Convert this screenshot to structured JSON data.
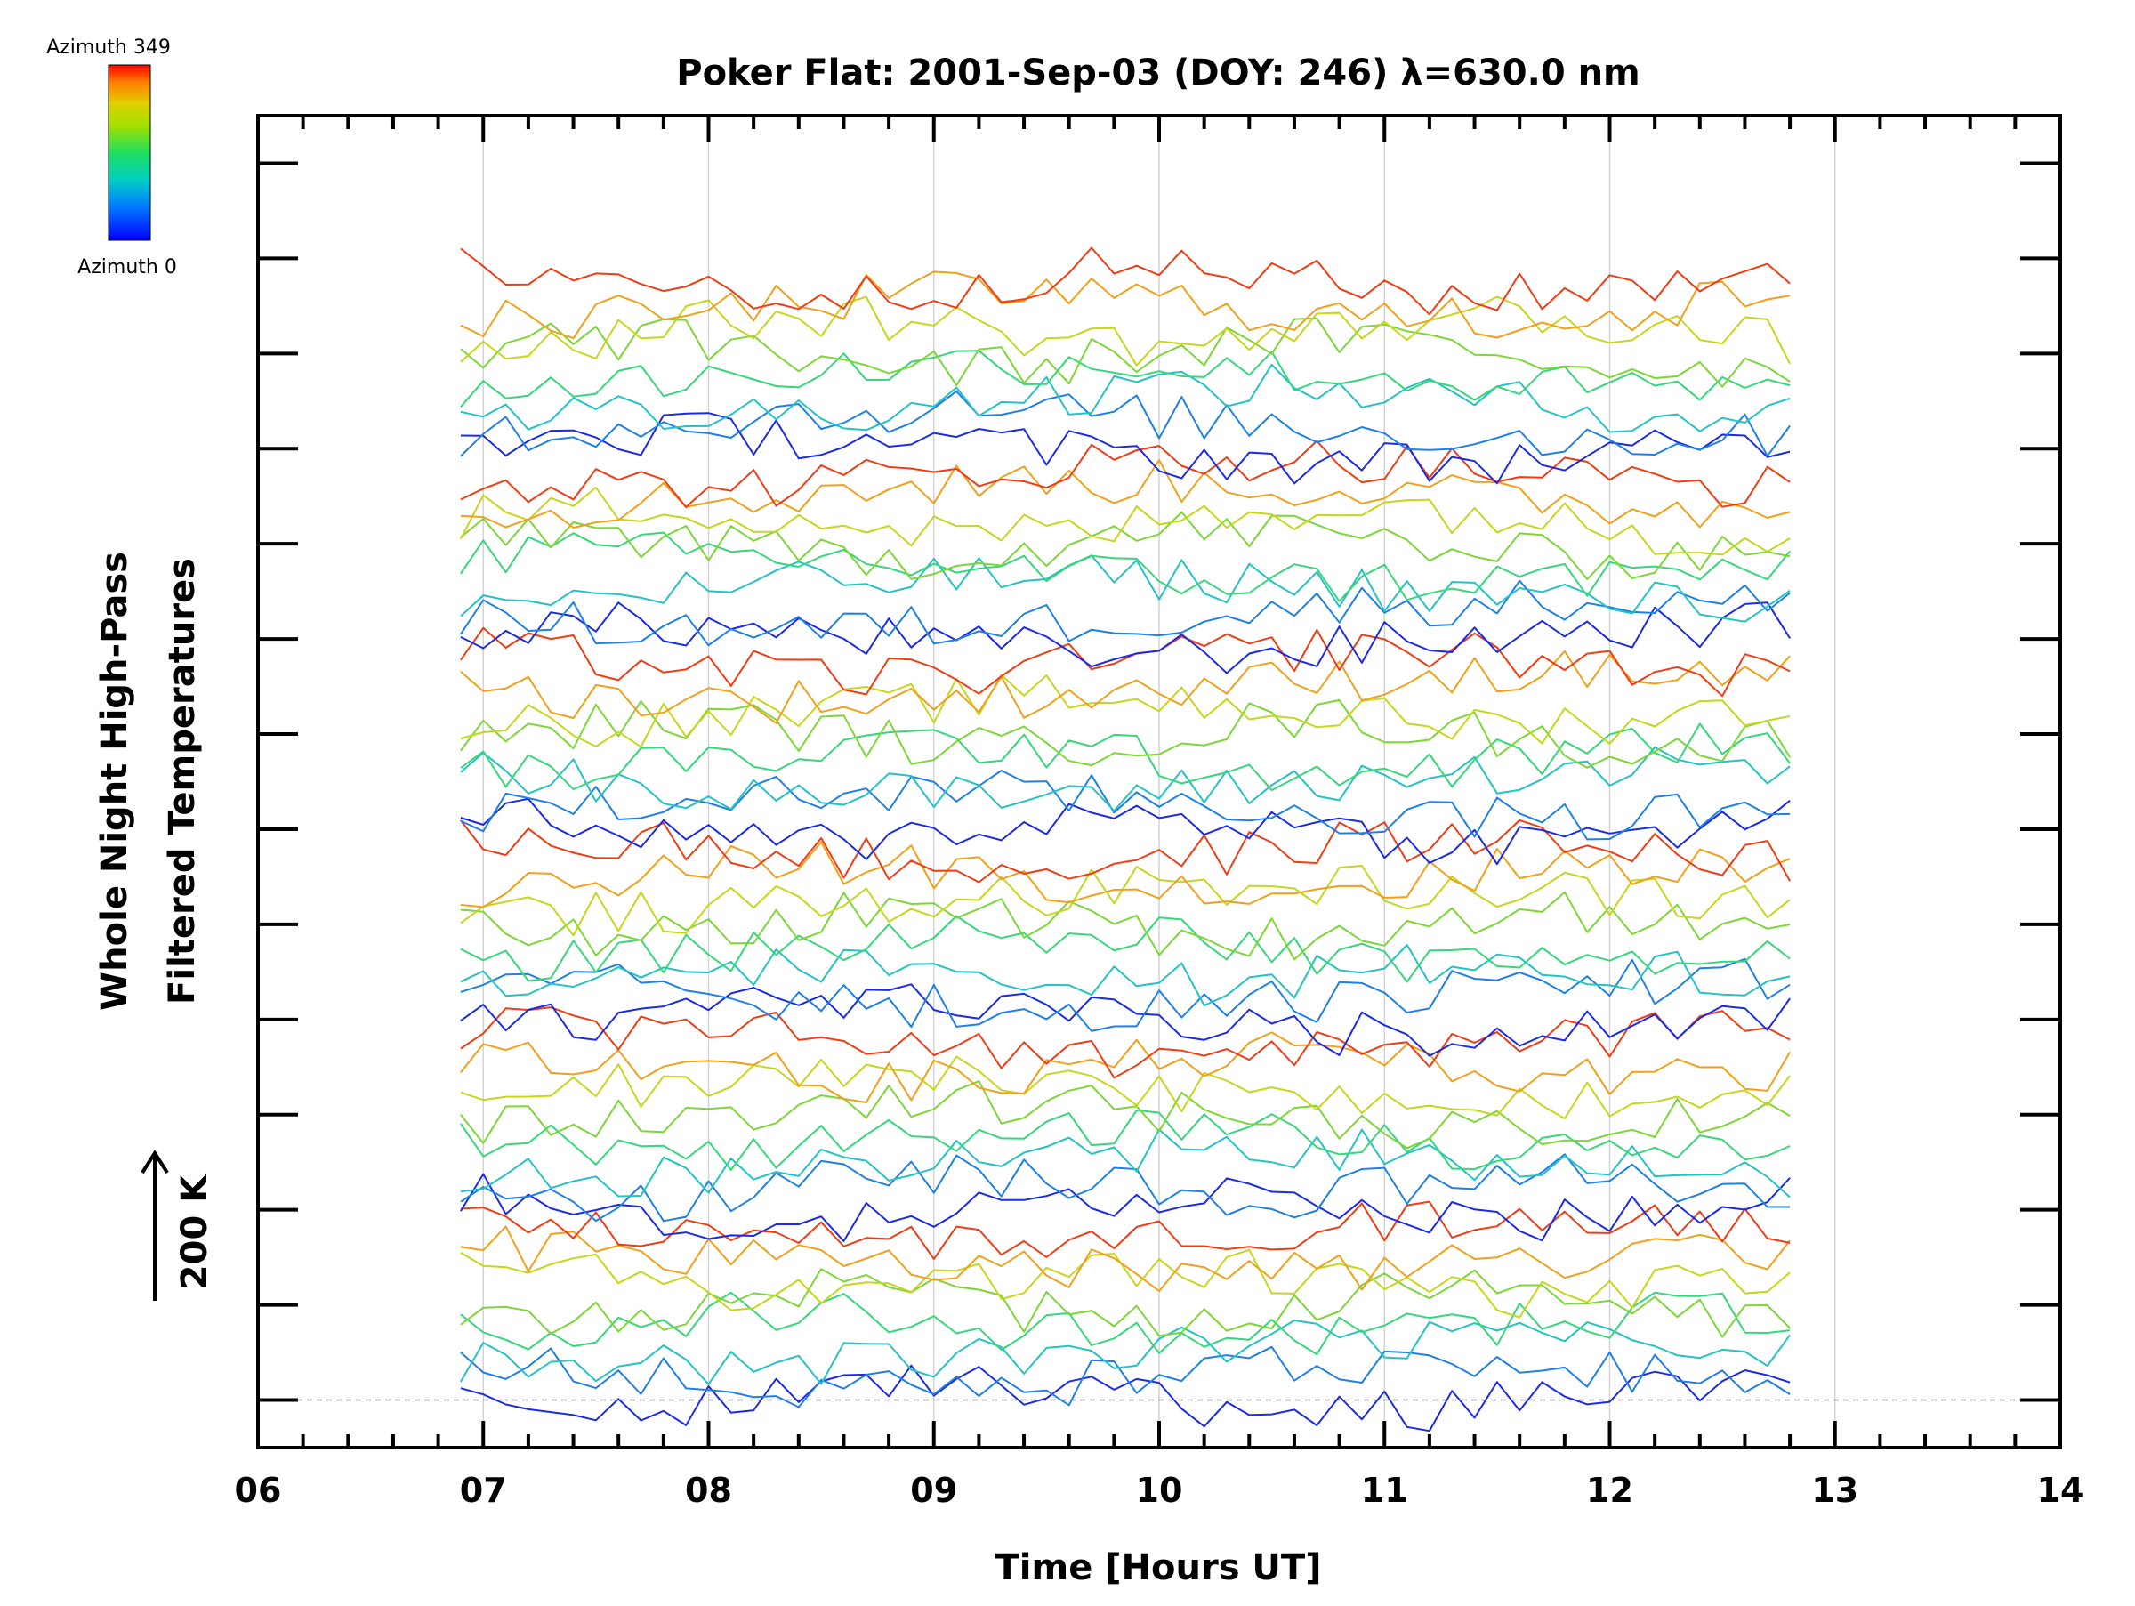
{
  "chart_data": {
    "type": "line",
    "title": "Poker Flat: 2001-Sep-03 (DOY: 246) λ=630.0 nm",
    "xlabel": "Time [Hours UT]",
    "ylabel_line1": "Whole Night High-Pass",
    "ylabel_line2": "Filtered Temperatures",
    "xlim": [
      6,
      14
    ],
    "xticks": [
      "06",
      "07",
      "08",
      "09",
      "10",
      "11",
      "12",
      "13",
      "14"
    ],
    "ylim": [
      -0.5,
      13.5
    ],
    "y_major_step": 1,
    "scale_bar_label": "200 K",
    "scale_bar_value_K": 200,
    "grid": "vertical",
    "reference_line": 0,
    "series_x_start": 6.9,
    "series_x_end": 12.82,
    "series_x_step": 0.1,
    "series_count": 48,
    "offset_step": 0.25,
    "amplitude": 0.3,
    "colorbar": {
      "top_label": "Azimuth 349",
      "bottom_label": "Azimuth 0",
      "colors": [
        "#0000ff",
        "#0080ff",
        "#00d0c0",
        "#20e060",
        "#a0e000",
        "#e0d000",
        "#ff8000",
        "#ff0000"
      ]
    },
    "line_colors": [
      "#1a2ae6",
      "#1f7fe8",
      "#24c2c2",
      "#36d67a",
      "#7dd638",
      "#c6d61c",
      "#f0a01a",
      "#f03c14"
    ]
  }
}
